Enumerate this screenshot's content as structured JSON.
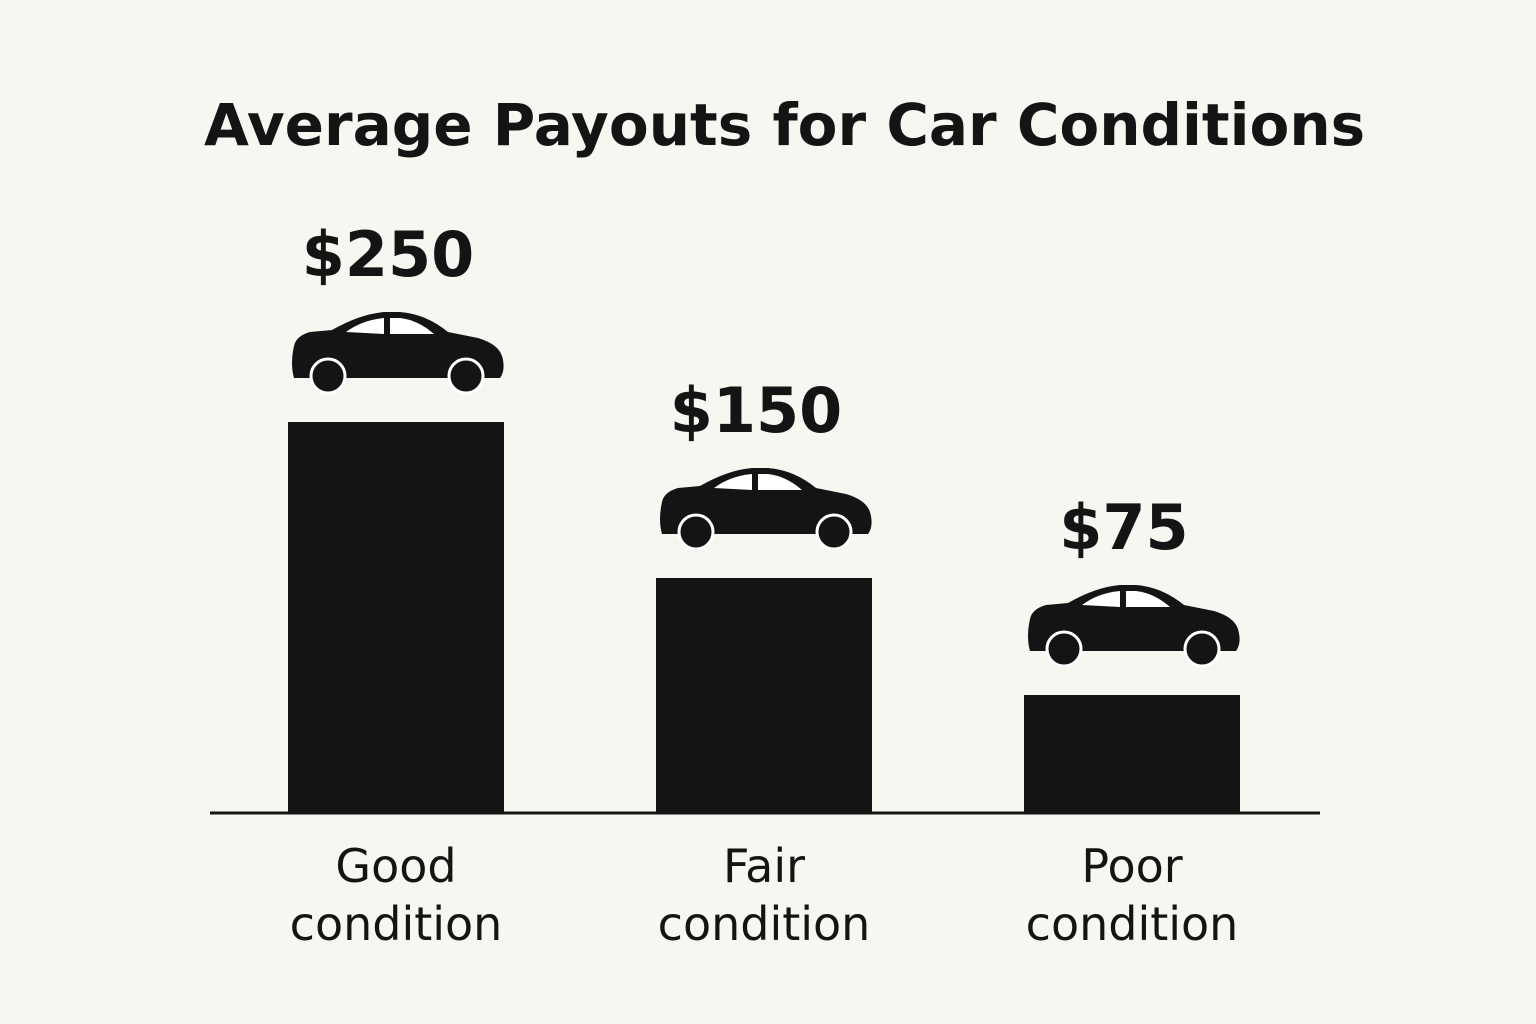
{
  "chart_data": {
    "type": "bar",
    "title": "Average Payouts for Car Conditions",
    "xlabel": "",
    "ylabel": "",
    "categories": [
      [
        "Good",
        "condition"
      ],
      [
        "Fair",
        "condition"
      ],
      [
        "Poor",
        "condition"
      ]
    ],
    "values": [
      250,
      150,
      75
    ],
    "data_labels": [
      "$250",
      "$150",
      "$75"
    ],
    "value_unit": "$",
    "ylim": [
      0,
      300
    ],
    "grid": false,
    "legend": "none",
    "bar_icon": "car-icon"
  },
  "colors": {
    "background": "#f8f6f1",
    "bar": "#141414",
    "text": "#141414",
    "wheel_hub": "#ffffff"
  }
}
